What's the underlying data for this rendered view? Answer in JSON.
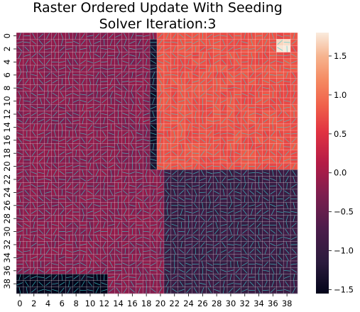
{
  "chart_data": {
    "type": "heatmap",
    "title_lines": [
      "Raster Ordered Update With Seeding",
      "Solver Iteration:3"
    ],
    "grid_size": 40,
    "xtick_labels": [
      "0",
      "2",
      "4",
      "6",
      "8",
      "10",
      "12",
      "14",
      "16",
      "18",
      "20",
      "22",
      "24",
      "26",
      "28",
      "30",
      "32",
      "34",
      "36",
      "38"
    ],
    "ytick_labels": [
      "0",
      "2",
      "4",
      "6",
      "8",
      "10",
      "12",
      "14",
      "16",
      "18",
      "20",
      "22",
      "24",
      "26",
      "28",
      "30",
      "32",
      "34",
      "36",
      "38"
    ],
    "colorbar": {
      "vmin": -1.55,
      "vmax": 1.8,
      "ticks": [
        -1.5,
        -1.0,
        -0.5,
        0.0,
        0.5,
        1.0,
        1.5
      ],
      "tick_labels": [
        "−1.5",
        "−1.0",
        "−0.5",
        "0.0",
        "0.5",
        "1.0",
        "1.5"
      ],
      "colormap": "rocket"
    },
    "regions": [
      {
        "name": "top-left",
        "rows": [
          0,
          39
        ],
        "cols": [
          0,
          19
        ],
        "value": -0.2
      },
      {
        "name": "top-right",
        "rows": [
          0,
          20
        ],
        "cols": [
          20,
          39
        ],
        "value": 0.75
      },
      {
        "name": "right-strip",
        "rows": [
          1,
          20
        ],
        "cols": [
          19,
          19
        ],
        "value": -1.35
      },
      {
        "name": "bottom-right",
        "rows": [
          21,
          39
        ],
        "cols": [
          21,
          39
        ],
        "value": -0.95
      },
      {
        "name": "bottom-left-cluster",
        "rows": [
          37,
          39
        ],
        "cols": [
          0,
          12
        ],
        "value": -1.5
      },
      {
        "name": "hot-seed",
        "rows": [
          1,
          2
        ],
        "cols": [
          37,
          38
        ],
        "value": 1.75
      }
    ],
    "overlay": {
      "type": "direction-arrows",
      "color": "#3fd0d0"
    }
  }
}
